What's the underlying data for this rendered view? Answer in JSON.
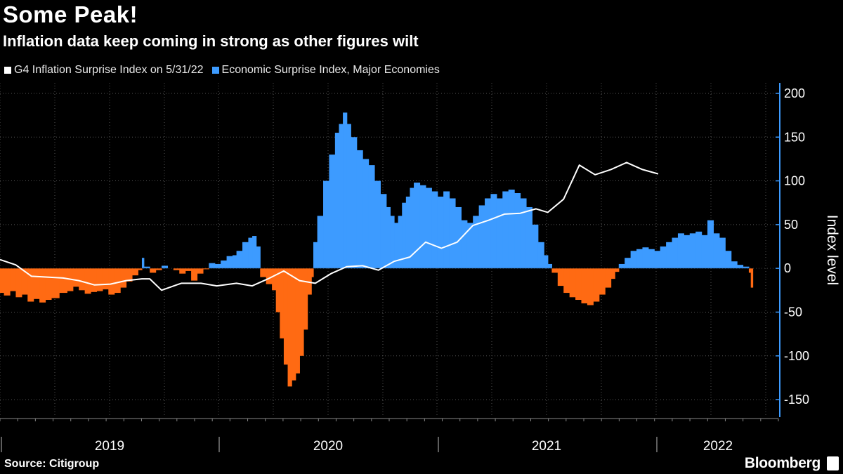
{
  "header": {
    "title": "Some Peak!",
    "subtitle": "Inflation data keep coming in strong as other figures wilt"
  },
  "legend": {
    "series1_label": "G4 Inflation Surprise Index  on 5/31/22",
    "series2_label": "Economic Surprise Index, Major Economies"
  },
  "footer": {
    "source": "Source: Citigroup",
    "brand": "Bloomberg"
  },
  "colors": {
    "background": "#000000",
    "positive": "#3d9bff",
    "negative": "#ff6a13",
    "line": "#ffffff",
    "axis": "#3d9bff",
    "grid": "#555555"
  },
  "chart_data": {
    "type": "area",
    "title": "Some Peak!",
    "subtitle": "Inflation data keep coming in strong as other figures wilt",
    "ylabel": "Index level",
    "ylim": [
      -170,
      212
    ],
    "yticks": [
      200,
      150,
      100,
      50,
      0,
      -50,
      -100,
      -150
    ],
    "xlim": [
      2018.5,
      2022.45
    ],
    "year_labels": [
      {
        "label": "2019",
        "x": 2019.0
      },
      {
        "label": "2020",
        "x": 2020.0
      },
      {
        "label": "2021",
        "x": 2021.0
      },
      {
        "label": "2022",
        "x": 2021.7
      }
    ],
    "x_separators": [
      2018.5,
      2019.5,
      2020.5,
      2021.5
    ],
    "series": [
      {
        "name": "Economic Surprise Index, Major Economies",
        "kind": "area",
        "points": [
          [
            2018.5,
            -28
          ],
          [
            2018.52,
            -31
          ],
          [
            2018.55,
            -26
          ],
          [
            2018.58,
            -33
          ],
          [
            2018.61,
            -30
          ],
          [
            2018.64,
            -38
          ],
          [
            2018.67,
            -35
          ],
          [
            2018.7,
            -39
          ],
          [
            2018.73,
            -36
          ],
          [
            2018.76,
            -34
          ],
          [
            2018.8,
            -28
          ],
          [
            2018.84,
            -26
          ],
          [
            2018.87,
            -21
          ],
          [
            2018.9,
            -25
          ],
          [
            2018.93,
            -29
          ],
          [
            2018.96,
            -27
          ],
          [
            2018.99,
            -26
          ],
          [
            2019.02,
            -24
          ],
          [
            2019.05,
            -30
          ],
          [
            2019.08,
            -28
          ],
          [
            2019.11,
            -22
          ],
          [
            2019.14,
            -15
          ],
          [
            2019.17,
            -8
          ],
          [
            2019.2,
            -2
          ],
          [
            2019.22,
            12
          ],
          [
            2019.23,
            2
          ],
          [
            2019.26,
            -5
          ],
          [
            2019.29,
            -2
          ],
          [
            2019.32,
            3
          ],
          [
            2019.35,
            0
          ],
          [
            2019.38,
            -2
          ],
          [
            2019.41,
            -6
          ],
          [
            2019.44,
            -3
          ],
          [
            2019.47,
            -14
          ],
          [
            2019.5,
            -6
          ],
          [
            2019.53,
            -1
          ],
          [
            2019.56,
            6
          ],
          [
            2019.59,
            5
          ],
          [
            2019.62,
            9
          ],
          [
            2019.65,
            14
          ],
          [
            2019.68,
            15
          ],
          [
            2019.7,
            20
          ],
          [
            2019.73,
            30
          ],
          [
            2019.76,
            35
          ],
          [
            2019.78,
            37
          ],
          [
            2019.8,
            25
          ],
          [
            2019.82,
            -10
          ],
          [
            2019.85,
            -18
          ],
          [
            2019.88,
            -25
          ],
          [
            2019.9,
            -50
          ],
          [
            2019.92,
            -80
          ],
          [
            2019.94,
            -110
          ],
          [
            2019.96,
            -135
          ],
          [
            2019.98,
            -128
          ],
          [
            2020.0,
            -120
          ],
          [
            2020.02,
            -100
          ],
          [
            2020.04,
            -70
          ],
          [
            2020.06,
            -30
          ],
          [
            2020.08,
            -10
          ],
          [
            2020.09,
            30
          ],
          [
            2020.11,
            60
          ],
          [
            2020.14,
            100
          ],
          [
            2020.17,
            130
          ],
          [
            2020.2,
            155
          ],
          [
            2020.22,
            165
          ],
          [
            2020.24,
            178
          ],
          [
            2020.26,
            165
          ],
          [
            2020.28,
            150
          ],
          [
            2020.31,
            135
          ],
          [
            2020.34,
            125
          ],
          [
            2020.37,
            118
          ],
          [
            2020.4,
            100
          ],
          [
            2020.43,
            85
          ],
          [
            2020.46,
            70
          ],
          [
            2020.48,
            60
          ],
          [
            2020.5,
            52
          ],
          [
            2020.52,
            60
          ],
          [
            2020.54,
            75
          ],
          [
            2020.56,
            82
          ],
          [
            2020.58,
            92
          ],
          [
            2020.6,
            98
          ],
          [
            2020.63,
            95
          ],
          [
            2020.66,
            92
          ],
          [
            2020.69,
            88
          ],
          [
            2020.72,
            82
          ],
          [
            2020.75,
            88
          ],
          [
            2020.78,
            80
          ],
          [
            2020.81,
            70
          ],
          [
            2020.84,
            55
          ],
          [
            2020.87,
            52
          ],
          [
            2020.9,
            60
          ],
          [
            2020.93,
            72
          ],
          [
            2020.96,
            80
          ],
          [
            2020.99,
            85
          ],
          [
            2021.02,
            80
          ],
          [
            2021.05,
            88
          ],
          [
            2021.08,
            90
          ],
          [
            2021.11,
            86
          ],
          [
            2021.14,
            80
          ],
          [
            2021.17,
            70
          ],
          [
            2021.2,
            50
          ],
          [
            2021.23,
            30
          ],
          [
            2021.26,
            15
          ],
          [
            2021.28,
            5
          ],
          [
            2021.3,
            -5
          ],
          [
            2021.33,
            -20
          ],
          [
            2021.36,
            -28
          ],
          [
            2021.39,
            -33
          ],
          [
            2021.42,
            -36
          ],
          [
            2021.45,
            -40
          ],
          [
            2021.48,
            -42
          ],
          [
            2021.51,
            -38
          ],
          [
            2021.54,
            -30
          ],
          [
            2021.57,
            -22
          ],
          [
            2021.6,
            -12
          ],
          [
            2021.62,
            -4
          ],
          [
            2021.64,
            5
          ],
          [
            2021.67,
            12
          ],
          [
            2021.7,
            20
          ],
          [
            2021.73,
            22
          ],
          [
            2021.76,
            24
          ],
          [
            2021.79,
            22
          ],
          [
            2021.82,
            20
          ],
          [
            2021.85,
            25
          ],
          [
            2021.88,
            30
          ],
          [
            2021.91,
            35
          ],
          [
            2021.94,
            40
          ],
          [
            2021.97,
            38
          ],
          [
            2022.0,
            40
          ],
          [
            2022.03,
            42
          ],
          [
            2022.06,
            38
          ],
          [
            2022.09,
            55
          ],
          [
            2022.12,
            40
          ],
          [
            2022.15,
            35
          ],
          [
            2022.18,
            20
          ],
          [
            2022.21,
            8
          ],
          [
            2022.24,
            4
          ],
          [
            2022.27,
            2
          ],
          [
            2022.3,
            -5
          ],
          [
            2022.31,
            -22
          ]
        ]
      },
      {
        "name": "G4 Inflation Surprise Index",
        "kind": "line",
        "points": [
          [
            2018.5,
            10
          ],
          [
            2018.58,
            4
          ],
          [
            2018.66,
            -9
          ],
          [
            2018.74,
            -10
          ],
          [
            2018.82,
            -11
          ],
          [
            2018.9,
            -14
          ],
          [
            2018.98,
            -19
          ],
          [
            2019.06,
            -18
          ],
          [
            2019.14,
            -14
          ],
          [
            2019.22,
            -12
          ],
          [
            2019.26,
            -12
          ],
          [
            2019.32,
            -25
          ],
          [
            2019.42,
            -17
          ],
          [
            2019.52,
            -17
          ],
          [
            2019.6,
            -20
          ],
          [
            2019.7,
            -17
          ],
          [
            2019.78,
            -20
          ],
          [
            2019.86,
            -12
          ],
          [
            2019.94,
            -3
          ],
          [
            2020.02,
            -14
          ],
          [
            2020.1,
            -17
          ],
          [
            2020.18,
            -6
          ],
          [
            2020.26,
            2
          ],
          [
            2020.34,
            3
          ],
          [
            2020.42,
            -2
          ],
          [
            2020.5,
            8
          ],
          [
            2020.58,
            13
          ],
          [
            2020.66,
            30
          ],
          [
            2020.74,
            23
          ],
          [
            2020.82,
            30
          ],
          [
            2020.9,
            49
          ],
          [
            2020.98,
            55
          ],
          [
            2021.06,
            62
          ],
          [
            2021.14,
            63
          ],
          [
            2021.22,
            68
          ],
          [
            2021.28,
            64
          ],
          [
            2021.36,
            79
          ],
          [
            2021.44,
            118
          ],
          [
            2021.52,
            107
          ],
          [
            2021.6,
            113
          ],
          [
            2021.68,
            121
          ],
          [
            2021.76,
            113
          ],
          [
            2021.84,
            108
          ]
        ]
      }
    ]
  }
}
